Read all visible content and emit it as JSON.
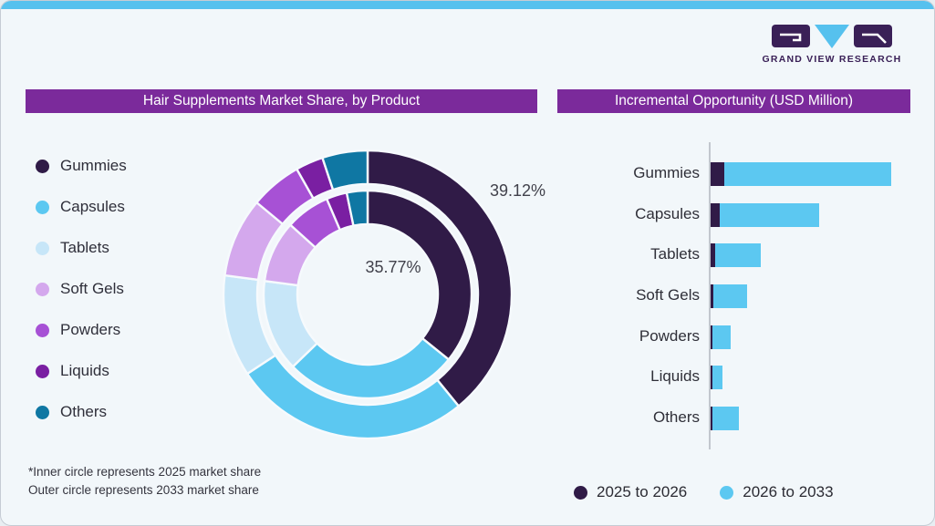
{
  "brand": {
    "name": "GRAND VIEW RESEARCH"
  },
  "panels": {
    "left_title": "Hair Supplements Market Share, by Product",
    "right_title": "Incremental Opportunity (USD Million)"
  },
  "colors": {
    "background": "#F2F7FA",
    "top_strip": "#56C1EE",
    "title_bar": "#7B2A9B",
    "logo_purple": "#3A2057",
    "logo_blue": "#56C1EE",
    "axis_line": "#C2C7CE",
    "segment_gap_stroke": "#F6FAFD",
    "category_colors": [
      "#301B47",
      "#5CC8F1",
      "#C7E6F8",
      "#D4A8ED",
      "#A751D5",
      "#7A1FA2",
      "#0F77A3"
    ],
    "bar_2025_2026": "#301B47",
    "bar_2026_2033": "#5CC8F1"
  },
  "donut": {
    "outer_label": "39.12%",
    "inner_label": "35.77%",
    "footnote_line1": "*Inner circle represents 2025 market share",
    "footnote_line2": "Outer circle represents 2033 market share"
  },
  "bar_legend": [
    {
      "label": "2025 to 2026",
      "color": "#301B47"
    },
    {
      "label": "2026 to 2033",
      "color": "#5CC8F1"
    }
  ],
  "chart_data": [
    {
      "type": "pie",
      "subtype": "double-ring-donut",
      "title": "Hair Supplements Market Share, by Product",
      "categories": [
        "Gummies",
        "Capsules",
        "Tablets",
        "Soft Gels",
        "Powders",
        "Liquids",
        "Others"
      ],
      "series": [
        {
          "name": "2025 market share (inner circle)",
          "values": [
            35.77,
            27.0,
            14.3,
            9.6,
            6.9,
            3.2,
            3.23
          ]
        },
        {
          "name": "2033 market share (outer circle)",
          "values": [
            39.12,
            26.6,
            11.4,
            8.9,
            5.8,
            3.1,
            5.08
          ]
        }
      ],
      "data_labels": [
        {
          "text": "39.12%",
          "refers_to": "Gummies outer ring"
        },
        {
          "text": "35.77%",
          "refers_to": "Gummies inner ring"
        }
      ],
      "legend_position": "left",
      "start_angle_deg": 0,
      "direction": "clockwise"
    },
    {
      "type": "bar",
      "subtype": "horizontal-stacked",
      "title": "Incremental Opportunity (USD Million)",
      "categories": [
        "Gummies",
        "Capsules",
        "Tablets",
        "Soft Gels",
        "Powders",
        "Liquids",
        "Others"
      ],
      "series": [
        {
          "name": "2025 to 2026",
          "values": [
            15,
            10,
            5,
            3,
            2,
            2,
            2
          ]
        },
        {
          "name": "2026 to 2033",
          "values": [
            183,
            109,
            50,
            37,
            20,
            11,
            29
          ]
        }
      ],
      "value_units": "relative length (axis unlabeled)",
      "legend_position": "bottom",
      "grid": false
    }
  ]
}
